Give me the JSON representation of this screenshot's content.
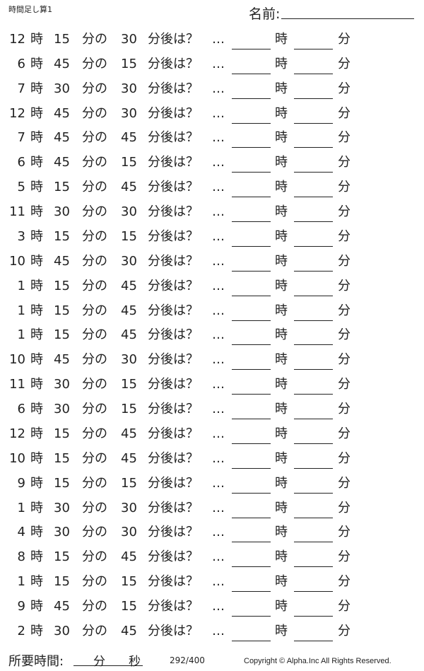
{
  "header": {
    "title": "時間足し算1",
    "name_label": "名前:"
  },
  "labels": {
    "hour": "時",
    "min_of": "分の",
    "after": "分後は？",
    "ellipsis": "…",
    "answer_hour": "時",
    "answer_min": "分"
  },
  "problems": [
    {
      "h": "12",
      "m": "15",
      "add": "30"
    },
    {
      "h": "6",
      "m": "45",
      "add": "15"
    },
    {
      "h": "7",
      "m": "30",
      "add": "30"
    },
    {
      "h": "12",
      "m": "45",
      "add": "30"
    },
    {
      "h": "7",
      "m": "45",
      "add": "45"
    },
    {
      "h": "6",
      "m": "45",
      "add": "15"
    },
    {
      "h": "5",
      "m": "15",
      "add": "45"
    },
    {
      "h": "11",
      "m": "30",
      "add": "30"
    },
    {
      "h": "3",
      "m": "15",
      "add": "15"
    },
    {
      "h": "10",
      "m": "45",
      "add": "30"
    },
    {
      "h": "1",
      "m": "15",
      "add": "45"
    },
    {
      "h": "1",
      "m": "15",
      "add": "45"
    },
    {
      "h": "1",
      "m": "15",
      "add": "45"
    },
    {
      "h": "10",
      "m": "45",
      "add": "30"
    },
    {
      "h": "11",
      "m": "30",
      "add": "15"
    },
    {
      "h": "6",
      "m": "30",
      "add": "15"
    },
    {
      "h": "12",
      "m": "15",
      "add": "45"
    },
    {
      "h": "10",
      "m": "15",
      "add": "45"
    },
    {
      "h": "9",
      "m": "15",
      "add": "15"
    },
    {
      "h": "1",
      "m": "30",
      "add": "30"
    },
    {
      "h": "4",
      "m": "30",
      "add": "30"
    },
    {
      "h": "8",
      "m": "15",
      "add": "45"
    },
    {
      "h": "1",
      "m": "15",
      "add": "15"
    },
    {
      "h": "9",
      "m": "45",
      "add": "15"
    },
    {
      "h": "2",
      "m": "30",
      "add": "45"
    }
  ],
  "footer": {
    "time_label": "所要時間:",
    "minutes": "分",
    "seconds": "秒",
    "page": "292/400",
    "copyright": "Copyright ©  Alpha.Inc All Rights Reserved."
  }
}
